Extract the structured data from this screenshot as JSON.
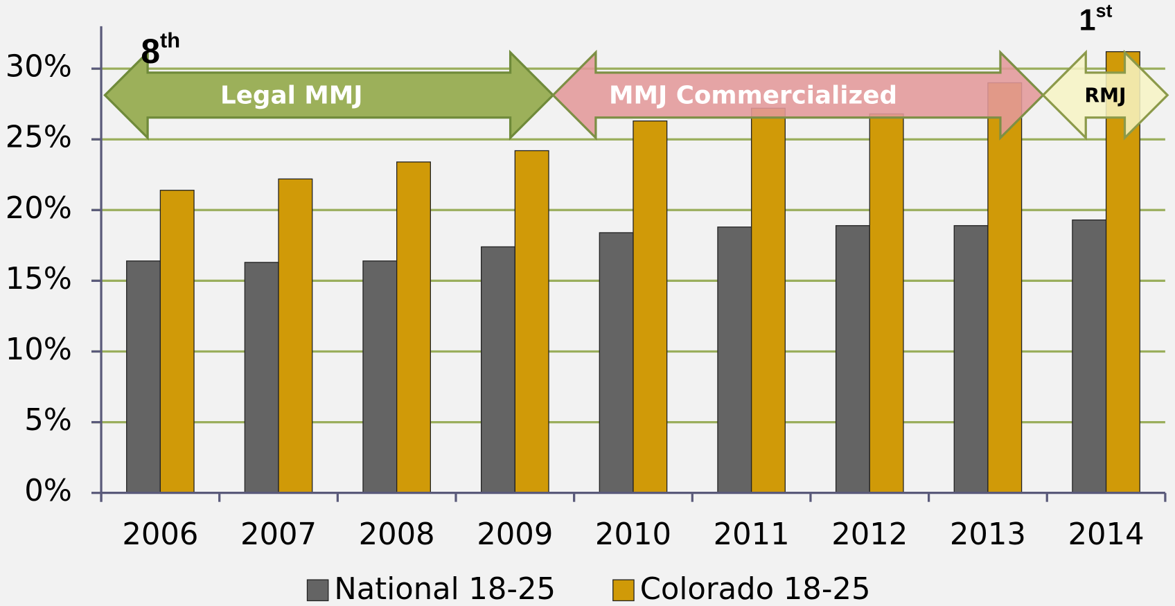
{
  "chart_data": {
    "type": "bar",
    "categories": [
      "2006",
      "2007",
      "2008",
      "2009",
      "2010",
      "2011",
      "2012",
      "2013",
      "2014"
    ],
    "series": [
      {
        "name": "National 18-25",
        "color": "#646464",
        "values": [
          16.4,
          16.3,
          16.4,
          17.4,
          18.4,
          18.8,
          18.9,
          18.9,
          19.3
        ]
      },
      {
        "name": "Colorado 18-25",
        "color": "#d09a08",
        "values": [
          21.4,
          22.2,
          23.4,
          24.2,
          26.3,
          27.2,
          26.8,
          29.0,
          31.2
        ]
      }
    ],
    "ylim": [
      0,
      33
    ],
    "yticks": [
      {
        "value": 0,
        "label": "0%"
      },
      {
        "value": 5,
        "label": "5%"
      },
      {
        "value": 10,
        "label": "10%"
      },
      {
        "value": 15,
        "label": "15%"
      },
      {
        "value": 20,
        "label": "20%"
      },
      {
        "value": 25,
        "label": "25%"
      },
      {
        "value": 30,
        "label": "30%"
      }
    ],
    "grid": true,
    "legend": "bottom",
    "periods": [
      {
        "label": "Legal MMJ",
        "color": "#9cb05a",
        "text_color": "#ffffff"
      },
      {
        "label": "MMJ Commercialized",
        "color": "#e3999a",
        "text_color": "#ffffff"
      },
      {
        "label": "RMJ",
        "color": "#f7f5c4",
        "text_color": "#000000"
      }
    ],
    "annotations": [
      {
        "text": "8",
        "sup": "th"
      },
      {
        "text": "1",
        "sup": "st"
      }
    ]
  }
}
